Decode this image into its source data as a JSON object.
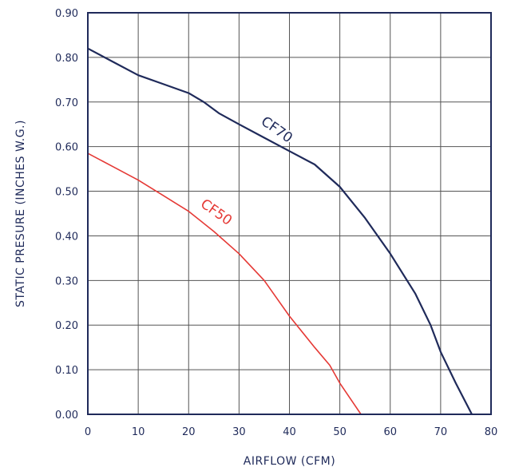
{
  "chart_data": {
    "type": "line",
    "xlabel": "AIRFLOW (CFM)",
    "ylabel": "STATIC PRESURE (INCHES W.G.)",
    "xlim": [
      0,
      80
    ],
    "ylim": [
      0,
      0.9
    ],
    "x_ticks": [
      "0",
      "10",
      "20",
      "30",
      "40",
      "50",
      "60",
      "70",
      "80"
    ],
    "y_ticks": [
      "0.00",
      "0.10",
      "0.20",
      "0.30",
      "0.40",
      "0.50",
      "0.60",
      "0.70",
      "0.80",
      "0.90"
    ],
    "grid": true,
    "colors": {
      "axis": "#1f2a5a",
      "grid": "#555555"
    },
    "series": [
      {
        "name": "CF70",
        "color": "#1f2a5a",
        "label_at": [
          37,
          0.63
        ],
        "label_rotate": 35,
        "points": [
          [
            0,
            0.82
          ],
          [
            5,
            0.79
          ],
          [
            10,
            0.76
          ],
          [
            15,
            0.74
          ],
          [
            20,
            0.72
          ],
          [
            23,
            0.7
          ],
          [
            26,
            0.675
          ],
          [
            30,
            0.65
          ],
          [
            35,
            0.62
          ],
          [
            40,
            0.59
          ],
          [
            45,
            0.56
          ],
          [
            50,
            0.51
          ],
          [
            55,
            0.44
          ],
          [
            60,
            0.36
          ],
          [
            65,
            0.27
          ],
          [
            68,
            0.2
          ],
          [
            70,
            0.14
          ],
          [
            73,
            0.07
          ],
          [
            76.2,
            0.0
          ]
        ]
      },
      {
        "name": "CF50",
        "color": "#e53935",
        "label_at": [
          25,
          0.445
        ],
        "label_rotate": 35,
        "points": [
          [
            0,
            0.585
          ],
          [
            5,
            0.555
          ],
          [
            10,
            0.525
          ],
          [
            15,
            0.49
          ],
          [
            20,
            0.455
          ],
          [
            25,
            0.41
          ],
          [
            30,
            0.36
          ],
          [
            35,
            0.3
          ],
          [
            40,
            0.22
          ],
          [
            45,
            0.15
          ],
          [
            48,
            0.11
          ],
          [
            50,
            0.07
          ],
          [
            54.2,
            0.0
          ]
        ]
      }
    ]
  }
}
